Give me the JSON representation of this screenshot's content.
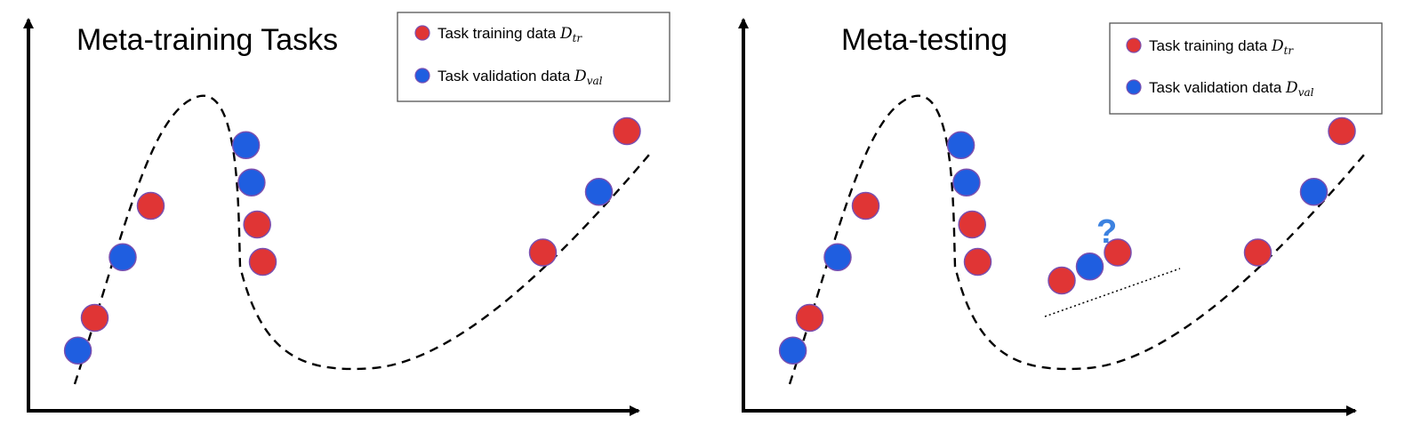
{
  "colors": {
    "training": "#e03535",
    "validation": "#1f5ee0",
    "question": "#3c82e0",
    "ink": "#000000"
  },
  "legend": {
    "training_label": "Task training data ",
    "training_math": "D",
    "training_sub": "tr",
    "validation_label": "Task validation data ",
    "validation_math": "D",
    "validation_sub": "val"
  },
  "panels": [
    {
      "id": "meta-training",
      "title": "Meta-training Tasks",
      "points": [
        {
          "x": 0.2,
          "y": 0.15,
          "kind": "validation"
        },
        {
          "x": 0.5,
          "y": 0.5,
          "kind": "training"
        },
        {
          "x": 1.0,
          "y": 1.15,
          "kind": "validation"
        },
        {
          "x": 1.5,
          "y": 1.7,
          "kind": "training"
        },
        {
          "x": 3.2,
          "y": 2.35,
          "kind": "validation"
        },
        {
          "x": 3.3,
          "y": 1.95,
          "kind": "validation"
        },
        {
          "x": 3.4,
          "y": 1.5,
          "kind": "training"
        },
        {
          "x": 3.5,
          "y": 1.1,
          "kind": "training"
        },
        {
          "x": 8.5,
          "y": 1.2,
          "kind": "training"
        },
        {
          "x": 9.5,
          "y": 1.85,
          "kind": "validation"
        },
        {
          "x": 10.0,
          "y": 2.5,
          "kind": "training"
        }
      ],
      "question_label": ""
    },
    {
      "id": "meta-testing",
      "title": "Meta-testing",
      "points": [
        {
          "x": 0.2,
          "y": 0.15,
          "kind": "validation"
        },
        {
          "x": 0.5,
          "y": 0.5,
          "kind": "training"
        },
        {
          "x": 1.0,
          "y": 1.15,
          "kind": "validation"
        },
        {
          "x": 1.5,
          "y": 1.7,
          "kind": "training"
        },
        {
          "x": 3.2,
          "y": 2.35,
          "kind": "validation"
        },
        {
          "x": 3.3,
          "y": 1.95,
          "kind": "validation"
        },
        {
          "x": 3.4,
          "y": 1.5,
          "kind": "training"
        },
        {
          "x": 3.5,
          "y": 1.1,
          "kind": "training"
        },
        {
          "x": 8.5,
          "y": 1.2,
          "kind": "training"
        },
        {
          "x": 9.5,
          "y": 1.85,
          "kind": "validation"
        },
        {
          "x": 10.0,
          "y": 2.5,
          "kind": "training"
        }
      ],
      "query_points": [
        {
          "x": 5.0,
          "y": 0.9,
          "kind": "training"
        },
        {
          "x": 5.5,
          "y": 1.05,
          "kind": "validation"
        },
        {
          "x": 6.0,
          "y": 1.2,
          "kind": "training"
        }
      ],
      "question_label": "?"
    }
  ]
}
